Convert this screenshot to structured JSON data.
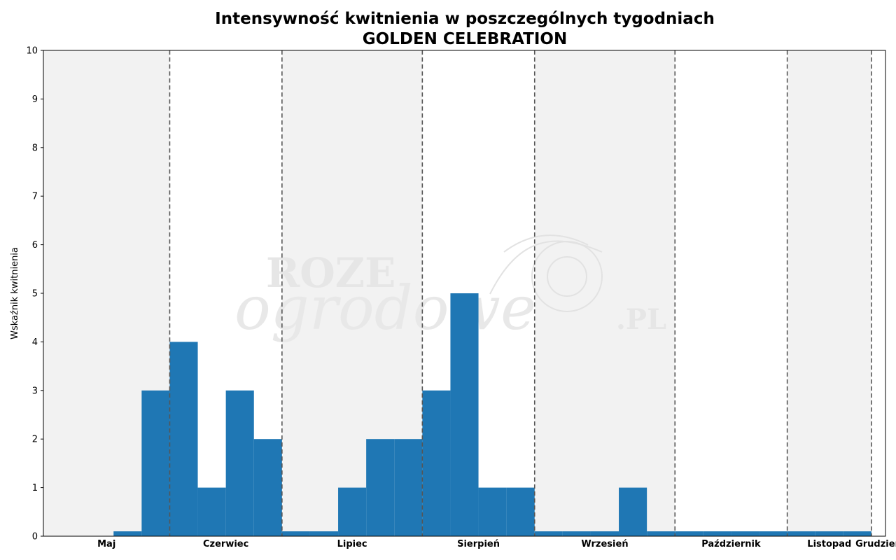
{
  "chart_data": {
    "type": "bar",
    "title": "Intensywność kwitnienia w poszczególnych tygodniach",
    "subtitle": "GOLDEN CELEBRATION",
    "ylabel": "Wskaźnik kwitnienia",
    "xlabel": "",
    "ylim": [
      0,
      10
    ],
    "yticks": [
      0,
      1,
      2,
      3,
      4,
      5,
      6,
      7,
      8,
      9,
      10
    ],
    "grid": false,
    "bar_color": "#1f77b4",
    "shade_color": "#f2f2f2",
    "separator_color": "#555555",
    "week_range": [
      18,
      48
    ],
    "months": [
      {
        "label": "Maj",
        "start": 18,
        "end": 22.5,
        "shaded": true
      },
      {
        "label": "Czerwiec",
        "start": 22.5,
        "end": 26.5,
        "shaded": false
      },
      {
        "label": "Lipiec",
        "start": 26.5,
        "end": 31.5,
        "shaded": true
      },
      {
        "label": "Sierpień",
        "start": 31.5,
        "end": 35.5,
        "shaded": false
      },
      {
        "label": "Wrzesień",
        "start": 35.5,
        "end": 40.5,
        "shaded": true
      },
      {
        "label": "Październik",
        "start": 40.5,
        "end": 44.5,
        "shaded": false
      },
      {
        "label": "Listopad",
        "start": 44.5,
        "end": 47.5,
        "shaded": true
      },
      {
        "label": "Grudzień",
        "start": 47.5,
        "end": 48,
        "shaded": false
      }
    ],
    "weeks": [
      21,
      22,
      23,
      24,
      25,
      26,
      27,
      28,
      29,
      30,
      31,
      32,
      33,
      34,
      35,
      36,
      37,
      38,
      39,
      40,
      41,
      42,
      43,
      44,
      45,
      46,
      47
    ],
    "values": [
      0.1,
      3,
      4,
      1,
      3,
      2,
      0.1,
      0.1,
      1,
      2,
      2,
      3,
      5,
      1,
      1,
      0.1,
      0.1,
      0.1,
      1,
      0.1,
      0.1,
      0.1,
      0.1,
      0.1,
      0.1,
      0.1,
      0.1
    ],
    "watermark": [
      "ROZE",
      "ogrodowe",
      ".PL"
    ]
  }
}
